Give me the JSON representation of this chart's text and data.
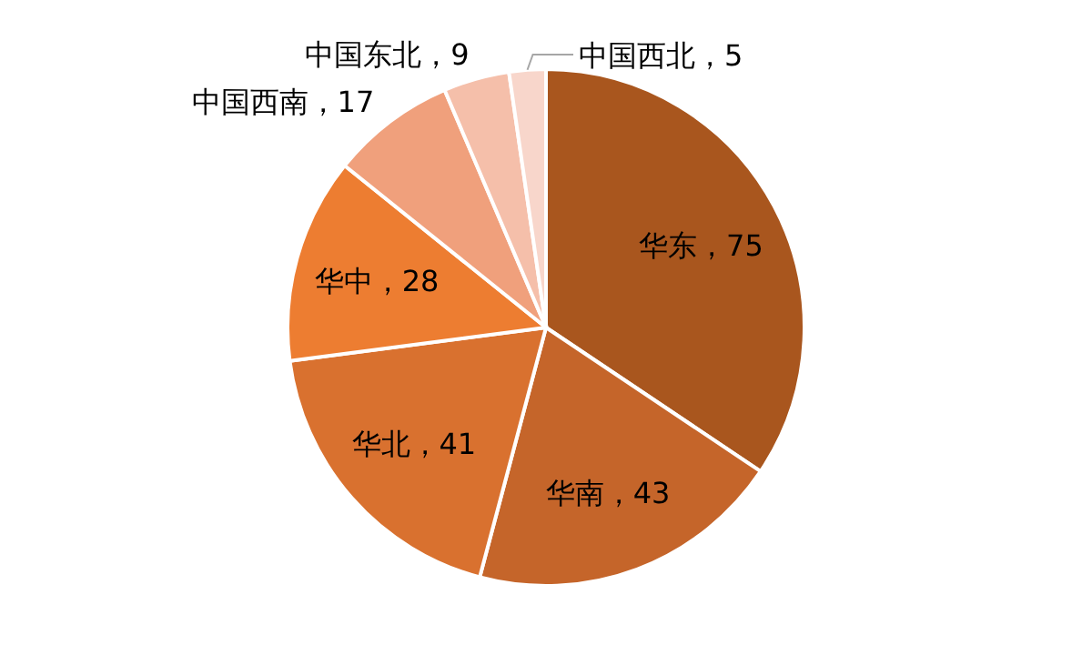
{
  "chart_data": {
    "type": "pie",
    "categories": [
      "华东",
      "华南",
      "华北",
      "华中",
      "中国西南",
      "中国东北",
      "中国西北"
    ],
    "values": [
      75,
      43,
      41,
      28,
      17,
      9,
      5
    ],
    "colors": [
      "#a9561e",
      "#c5652a",
      "#d9712f",
      "#ed7d31",
      "#f0a07c",
      "#f5bfaa",
      "#f8d6cb"
    ],
    "value_labels": [
      "，75",
      "，43",
      "，41",
      "，28",
      "，17",
      "，9",
      "，5"
    ]
  }
}
